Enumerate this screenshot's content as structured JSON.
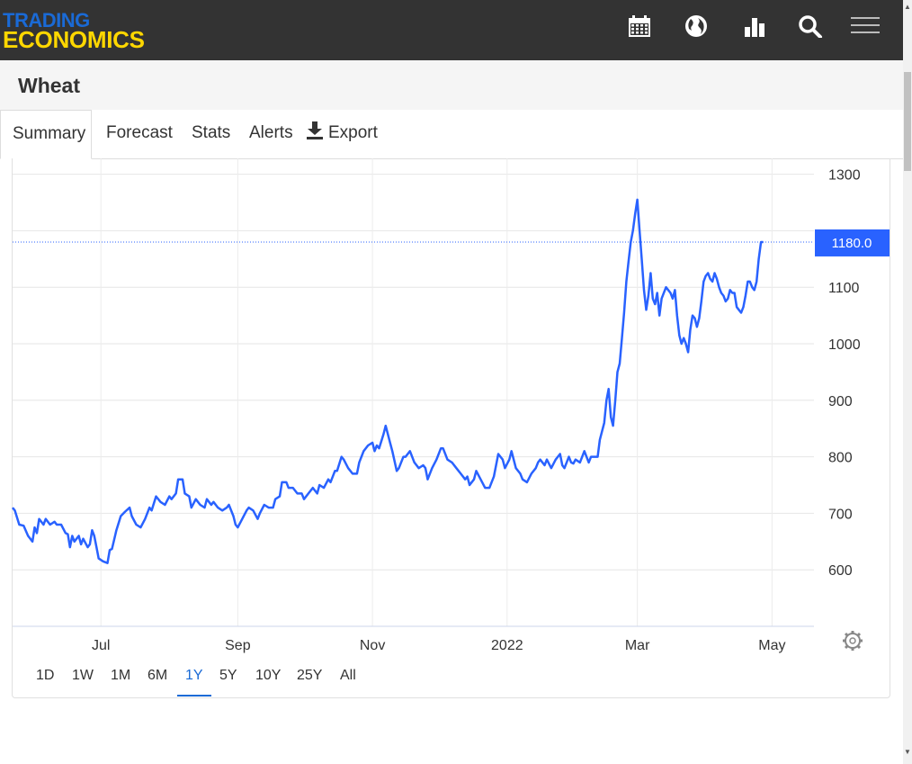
{
  "header": {
    "logo_line1": "TRADING",
    "logo_line2": "ECONOMICS",
    "icons": [
      "calendar-icon",
      "globe-icon",
      "bar-chart-icon",
      "search-icon",
      "hamburger-menu-icon"
    ]
  },
  "page": {
    "title": "Wheat"
  },
  "tabs": [
    {
      "label": "Summary",
      "active": true
    },
    {
      "label": "Forecast"
    },
    {
      "label": "Stats"
    },
    {
      "label": "Alerts"
    },
    {
      "label": "Export",
      "icon": "download-icon"
    }
  ],
  "ranges": [
    {
      "label": "1D"
    },
    {
      "label": "1W"
    },
    {
      "label": "1M"
    },
    {
      "label": "6M"
    },
    {
      "label": "1Y",
      "active": true
    },
    {
      "label": "5Y"
    },
    {
      "label": "10Y"
    },
    {
      "label": "25Y"
    },
    {
      "label": "All"
    }
  ],
  "colors": {
    "line": "#2962ff",
    "accent": "#1a6ad6",
    "logo_yellow": "#ffd700",
    "header_bg": "#333333"
  },
  "chart_data": {
    "type": "line",
    "y_ticks": [
      600,
      700,
      800,
      900,
      1000,
      1100,
      1300
    ],
    "x_ticks": [
      {
        "label": "Jul",
        "day": 40
      },
      {
        "label": "Sep",
        "day": 102
      },
      {
        "label": "Nov",
        "day": 163
      },
      {
        "label": "2022",
        "day": 224
      },
      {
        "label": "Mar",
        "day": 283
      },
      {
        "label": "May",
        "day": 344
      }
    ],
    "last_value_label": "1180.0",
    "last_value": 1180,
    "ylim": [
      500,
      1325
    ],
    "grid": true,
    "points": [
      [
        0,
        710
      ],
      [
        1,
        705
      ],
      [
        3,
        680
      ],
      [
        5,
        678
      ],
      [
        7,
        660
      ],
      [
        9,
        650
      ],
      [
        10,
        675
      ],
      [
        11,
        665
      ],
      [
        12,
        690
      ],
      [
        14,
        680
      ],
      [
        15,
        690
      ],
      [
        17,
        680
      ],
      [
        19,
        685
      ],
      [
        20,
        680
      ],
      [
        22,
        680
      ],
      [
        24,
        665
      ],
      [
        25,
        663
      ],
      [
        26,
        640
      ],
      [
        27,
        660
      ],
      [
        28,
        650
      ],
      [
        30,
        660
      ],
      [
        31,
        645
      ],
      [
        32,
        655
      ],
      [
        34,
        640
      ],
      [
        35,
        645
      ],
      [
        36,
        670
      ],
      [
        37,
        660
      ],
      [
        38,
        640
      ],
      [
        39,
        620
      ],
      [
        41,
        615
      ],
      [
        43,
        612
      ],
      [
        44,
        635
      ],
      [
        45,
        637
      ],
      [
        47,
        670
      ],
      [
        49,
        695
      ],
      [
        51,
        703
      ],
      [
        53,
        710
      ],
      [
        54,
        695
      ],
      [
        56,
        680
      ],
      [
        58,
        675
      ],
      [
        60,
        690
      ],
      [
        62,
        710
      ],
      [
        63,
        705
      ],
      [
        65,
        730
      ],
      [
        67,
        720
      ],
      [
        69,
        715
      ],
      [
        71,
        730
      ],
      [
        72,
        725
      ],
      [
        74,
        735
      ],
      [
        75,
        760
      ],
      [
        77,
        760
      ],
      [
        78,
        735
      ],
      [
        80,
        730
      ],
      [
        81,
        710
      ],
      [
        83,
        725
      ],
      [
        85,
        715
      ],
      [
        87,
        710
      ],
      [
        88,
        725
      ],
      [
        90,
        715
      ],
      [
        91,
        720
      ],
      [
        93,
        710
      ],
      [
        95,
        705
      ],
      [
        97,
        710
      ],
      [
        98,
        715
      ],
      [
        100,
        695
      ],
      [
        101,
        680
      ],
      [
        102,
        675
      ],
      [
        104,
        690
      ],
      [
        106,
        705
      ],
      [
        107,
        710
      ],
      [
        109,
        705
      ],
      [
        111,
        690
      ],
      [
        112,
        700
      ],
      [
        114,
        715
      ],
      [
        116,
        710
      ],
      [
        118,
        710
      ],
      [
        119,
        725
      ],
      [
        121,
        730
      ],
      [
        122,
        755
      ],
      [
        124,
        755
      ],
      [
        125,
        745
      ],
      [
        127,
        745
      ],
      [
        129,
        735
      ],
      [
        131,
        735
      ],
      [
        132,
        725
      ],
      [
        134,
        735
      ],
      [
        136,
        745
      ],
      [
        138,
        735
      ],
      [
        139,
        750
      ],
      [
        141,
        745
      ],
      [
        143,
        760
      ],
      [
        144,
        755
      ],
      [
        146,
        775
      ],
      [
        147,
        775
      ],
      [
        149,
        800
      ],
      [
        150,
        795
      ],
      [
        152,
        780
      ],
      [
        154,
        770
      ],
      [
        156,
        770
      ],
      [
        157,
        790
      ],
      [
        159,
        810
      ],
      [
        161,
        820
      ],
      [
        163,
        825
      ],
      [
        164,
        810
      ],
      [
        165,
        820
      ],
      [
        166,
        815
      ],
      [
        168,
        840
      ],
      [
        169,
        855
      ],
      [
        171,
        825
      ],
      [
        172,
        810
      ],
      [
        174,
        775
      ],
      [
        175,
        780
      ],
      [
        177,
        800
      ],
      [
        178,
        800
      ],
      [
        180,
        810
      ],
      [
        182,
        790
      ],
      [
        184,
        780
      ],
      [
        186,
        785
      ],
      [
        187,
        780
      ],
      [
        188,
        760
      ],
      [
        190,
        780
      ],
      [
        192,
        795
      ],
      [
        194,
        815
      ],
      [
        195,
        815
      ],
      [
        197,
        795
      ],
      [
        199,
        790
      ],
      [
        201,
        780
      ],
      [
        203,
        770
      ],
      [
        205,
        760
      ],
      [
        206,
        765
      ],
      [
        207,
        750
      ],
      [
        209,
        760
      ],
      [
        210,
        775
      ],
      [
        212,
        760
      ],
      [
        214,
        745
      ],
      [
        216,
        745
      ],
      [
        218,
        765
      ],
      [
        220,
        805
      ],
      [
        222,
        795
      ],
      [
        223,
        780
      ],
      [
        225,
        795
      ],
      [
        226,
        810
      ],
      [
        228,
        780
      ],
      [
        230,
        770
      ],
      [
        231,
        760
      ],
      [
        233,
        755
      ],
      [
        235,
        770
      ],
      [
        237,
        780
      ],
      [
        238,
        790
      ],
      [
        239,
        795
      ],
      [
        241,
        785
      ],
      [
        242,
        795
      ],
      [
        244,
        780
      ],
      [
        246,
        795
      ],
      [
        248,
        805
      ],
      [
        249,
        785
      ],
      [
        250,
        780
      ],
      [
        252,
        800
      ],
      [
        253,
        790
      ],
      [
        254,
        788
      ],
      [
        255,
        795
      ],
      [
        257,
        790
      ],
      [
        258,
        800
      ],
      [
        259,
        810
      ],
      [
        261,
        790
      ],
      [
        262,
        800
      ],
      [
        263,
        800
      ],
      [
        265,
        800
      ],
      [
        266,
        830
      ],
      [
        268,
        860
      ],
      [
        269,
        900
      ],
      [
        270,
        920
      ],
      [
        271,
        870
      ],
      [
        272,
        855
      ],
      [
        273,
        900
      ],
      [
        274,
        950
      ],
      [
        275,
        965
      ],
      [
        276,
        1010
      ],
      [
        277,
        1055
      ],
      [
        278,
        1110
      ],
      [
        279,
        1145
      ],
      [
        280,
        1180
      ],
      [
        281,
        1200
      ],
      [
        282,
        1230
      ],
      [
        283,
        1255
      ],
      [
        284,
        1200
      ],
      [
        285,
        1150
      ],
      [
        286,
        1095
      ],
      [
        287,
        1060
      ],
      [
        288,
        1085
      ],
      [
        289,
        1125
      ],
      [
        290,
        1080
      ],
      [
        291,
        1070
      ],
      [
        292,
        1090
      ],
      [
        293,
        1050
      ],
      [
        294,
        1080
      ],
      [
        296,
        1100
      ],
      [
        298,
        1090
      ],
      [
        299,
        1080
      ],
      [
        300,
        1095
      ],
      [
        301,
        1050
      ],
      [
        302,
        1015
      ],
      [
        303,
        1000
      ],
      [
        304,
        1010
      ],
      [
        305,
        1000
      ],
      [
        306,
        985
      ],
      [
        307,
        1025
      ],
      [
        308,
        1050
      ],
      [
        309,
        1045
      ],
      [
        310,
        1030
      ],
      [
        311,
        1045
      ],
      [
        312,
        1075
      ],
      [
        313,
        1110
      ],
      [
        314,
        1120
      ],
      [
        315,
        1125
      ],
      [
        316,
        1115
      ],
      [
        317,
        1110
      ],
      [
        318,
        1125
      ],
      [
        319,
        1115
      ],
      [
        320,
        1100
      ],
      [
        321,
        1090
      ],
      [
        322,
        1085
      ],
      [
        323,
        1075
      ],
      [
        324,
        1080
      ],
      [
        325,
        1095
      ],
      [
        326,
        1090
      ],
      [
        327,
        1090
      ],
      [
        328,
        1065
      ],
      [
        329,
        1060
      ],
      [
        330,
        1055
      ],
      [
        331,
        1065
      ],
      [
        332,
        1085
      ],
      [
        333,
        1110
      ],
      [
        334,
        1110
      ],
      [
        335,
        1100
      ],
      [
        336,
        1095
      ],
      [
        337,
        1110
      ],
      [
        338,
        1150
      ],
      [
        339,
        1180
      ],
      [
        340,
        1180
      ]
    ]
  }
}
